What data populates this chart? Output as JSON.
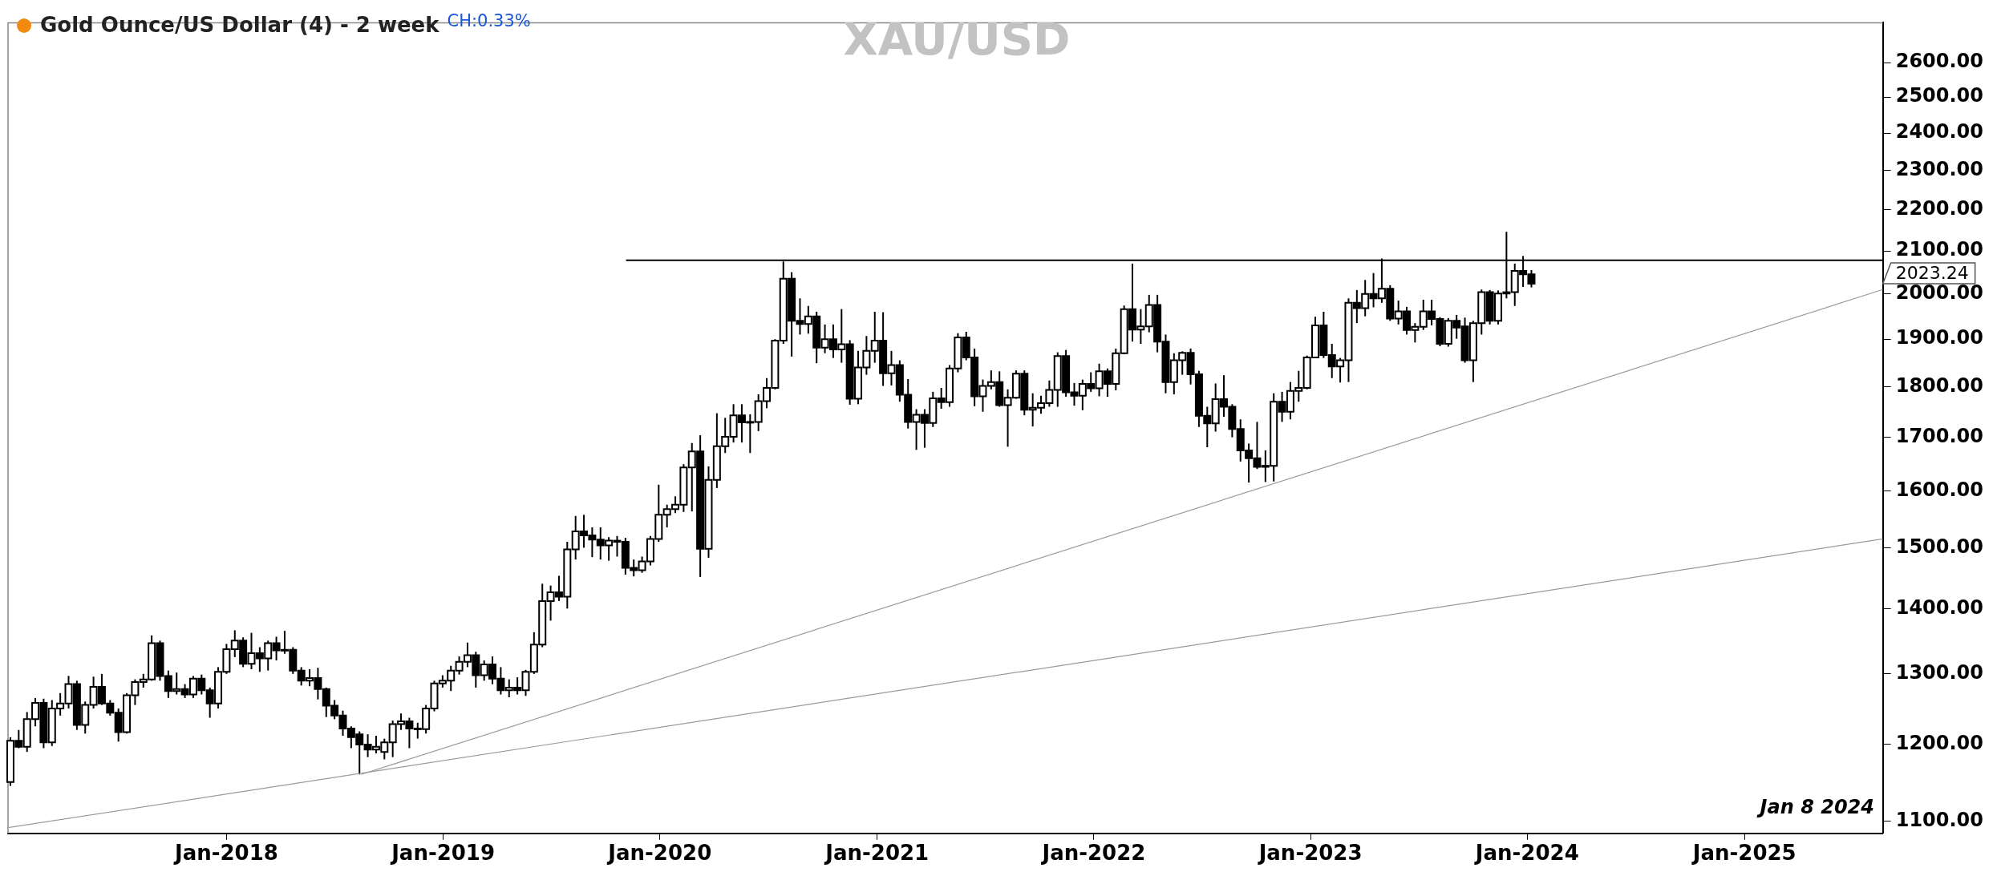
{
  "chart_data": {
    "type": "candlestick",
    "title": "XAU/USD",
    "subtitle": "Gold Ounce/US Dollar (4) - 2 week",
    "annotations": [
      "CH:0.33%",
      "Jan 8 2024",
      "2023.24"
    ],
    "color": "#000000",
    "log": "y",
    "colors": [
      "#ffffff",
      "#000000",
      "#ffffff",
      "#ffffff",
      "#000000",
      "#ffffff",
      "#ffffff",
      "#ffffff",
      "#000000",
      "#ffffff",
      "#ffffff",
      "#000000",
      "#000000",
      "#000000",
      "#ffffff",
      "#ffffff",
      "#ffffff",
      "#ffffff",
      "#000000",
      "#000000",
      "#ffffff",
      "#000000",
      "#ffffff",
      "#000000",
      "#000000",
      "#ffffff",
      "#ffffff",
      "#ffffff",
      "#000000",
      "#ffffff",
      "#000000",
      "#ffffff",
      "#000000",
      "#ffffff",
      "#000000",
      "#000000",
      "#ffffff",
      "#000000",
      "#000000",
      "#000000",
      "#000000",
      "#000000",
      "#000000",
      "#000000",
      "#ffffff",
      "#ffffff",
      "#ffffff",
      "#ffffff",
      "#000000",
      "#000000",
      "#ffffff",
      "#ffffff",
      "#ffffff",
      "#ffffff",
      "#ffffff",
      "#ffffff",
      "#000000",
      "#ffffff",
      "#000000",
      "#000000",
      "#ffffff",
      "#000000",
      "#ffffff",
      "#ffffff",
      "#ffffff",
      "#ffffff",
      "#000000",
      "#ffffff",
      "#ffffff",
      "#000000",
      "#000000",
      "#000000",
      "#ffffff",
      "#000000",
      "#000000",
      "#000000",
      "#ffffff",
      "#ffffff",
      "#ffffff",
      "#ffffff",
      "#ffffff",
      "#ffffff",
      "#ffffff",
      "#000000",
      "#ffffff",
      "#ffffff",
      "#ffffff",
      "#ffffff",
      "#000000",
      "#ffffff",
      "#ffffff",
      "#ffffff",
      "#ffffff",
      "#ffffff",
      "#000000",
      "#000000",
      "#ffffff",
      "#000000",
      "#ffffff",
      "#000000",
      "#ffffff",
      "#000000",
      "#ffffff",
      "#ffffff",
      "#ffffff",
      "#000000",
      "#ffffff",
      "#000000",
      "#000000",
      "#ffffff",
      "#000000",
      "#ffffff",
      "#000000",
      "#ffffff",
      "#ffffff",
      "#000000",
      "#000000",
      "#ffffff",
      "#ffffff",
      "#000000",
      "#ffffff",
      "#ffffff",
      "#000000",
      "#ffffff",
      "#ffffff",
      "#ffffff",
      "#ffffff",
      "#000000",
      "#000000",
      "#ffffff",
      "#000000",
      "#ffffff",
      "#000000",
      "#ffffff",
      "#ffffff",
      "#000000",
      "#ffffff",
      "#ffffff",
      "#000000",
      "#000000",
      "#ffffff",
      "#ffffff",
      "#000000",
      "#000000",
      "#000000",
      "#ffffff",
      "#000000",
      "#000000",
      "#000000",
      "#000000",
      "#000000",
      "#ffffff",
      "#ffffff",
      "#000000",
      "#ffffff",
      "#ffffff",
      "#ffffff",
      "#ffffff",
      "#000000",
      "#000000",
      "#ffffff",
      "#ffffff",
      "#000000",
      "#ffffff",
      "#000000",
      "#ffffff",
      "#000000",
      "#ffffff",
      "#000000",
      "#ffffff",
      "#ffffff",
      "#000000",
      "#000000",
      "#ffffff",
      "#000000",
      "#000000",
      "#ffffff",
      "#ffffff",
      "#000000",
      "#ffffff",
      "#ffffff",
      "#ffffff",
      "#000000",
      "#000000"
    ],
    "grid": false,
    "legend": false,
    "xlim": [
      "2016-12-29",
      "2025-08-22"
    ],
    "xticks": [
      {
        "value": "2018-01-01",
        "label": "Jan-2018"
      },
      {
        "value": "2019-01-01",
        "label": "Jan-2019"
      },
      {
        "value": "2020-01-01",
        "label": "Jan-2020"
      },
      {
        "value": "2021-01-01",
        "label": "Jan-2021"
      },
      {
        "value": "2022-01-01",
        "label": "Jan-2022"
      },
      {
        "value": "2023-01-01",
        "label": "Jan-2023"
      },
      {
        "value": "2024-01-01",
        "label": "Jan-2024"
      },
      {
        "value": "2025-01-01",
        "label": "Jan-2025"
      }
    ],
    "ylim": [
      1085,
      2720
    ],
    "yticks": [
      {
        "value": 1100,
        "label": "1100.00"
      },
      {
        "value": 1200,
        "label": "1200.00"
      },
      {
        "value": 1300,
        "label": "1300.00"
      },
      {
        "value": 1400,
        "label": "1400.00"
      },
      {
        "value": 1500,
        "label": "1500.00"
      },
      {
        "value": 1600,
        "label": "1600.00"
      },
      {
        "value": 1700,
        "label": "1700.00"
      },
      {
        "value": 1800,
        "label": "1800.00"
      },
      {
        "value": 1900,
        "label": "1900.00"
      },
      {
        "value": 2000,
        "label": "2000.00"
      },
      {
        "value": 2100,
        "label": "2100.00"
      },
      {
        "value": 2200,
        "label": "2200.00"
      },
      {
        "value": 2300,
        "label": "2300.00"
      },
      {
        "value": 2400,
        "label": "2400.00"
      },
      {
        "value": 2500,
        "label": "2500.00"
      },
      {
        "value": 2600,
        "label": "2600.00"
      }
    ],
    "x": [
      "2017-01-02",
      "2017-01-16",
      "2017-01-30",
      "2017-02-13",
      "2017-02-27",
      "2017-03-13",
      "2017-03-27",
      "2017-04-10",
      "2017-04-24",
      "2017-05-08",
      "2017-05-22",
      "2017-06-05",
      "2017-06-19",
      "2017-07-03",
      "2017-07-17",
      "2017-07-31",
      "2017-08-14",
      "2017-08-28",
      "2017-09-11",
      "2017-09-25",
      "2017-10-09",
      "2017-10-23",
      "2017-11-06",
      "2017-11-20",
      "2017-12-04",
      "2017-12-18",
      "2018-01-01",
      "2018-01-15",
      "2018-01-29",
      "2018-02-12",
      "2018-02-26",
      "2018-03-12",
      "2018-03-26",
      "2018-04-09",
      "2018-04-23",
      "2018-05-07",
      "2018-05-21",
      "2018-06-04",
      "2018-06-18",
      "2018-07-02",
      "2018-07-16",
      "2018-07-30",
      "2018-08-13",
      "2018-08-27",
      "2018-09-10",
      "2018-09-24",
      "2018-10-08",
      "2018-10-22",
      "2018-11-05",
      "2018-11-19",
      "2018-12-03",
      "2018-12-17",
      "2018-12-31",
      "2019-01-14",
      "2019-01-28",
      "2019-02-11",
      "2019-02-25",
      "2019-03-11",
      "2019-03-25",
      "2019-04-08",
      "2019-04-22",
      "2019-05-06",
      "2019-05-20",
      "2019-06-03",
      "2019-06-17",
      "2019-07-01",
      "2019-07-15",
      "2019-07-29",
      "2019-08-12",
      "2019-08-26",
      "2019-09-09",
      "2019-09-23",
      "2019-10-07",
      "2019-10-21",
      "2019-11-04",
      "2019-11-18",
      "2019-12-02",
      "2019-12-16",
      "2019-12-30",
      "2020-01-13",
      "2020-01-27",
      "2020-02-10",
      "2020-02-24",
      "2020-03-09",
      "2020-03-23",
      "2020-04-06",
      "2020-04-20",
      "2020-05-04",
      "2020-05-18",
      "2020-06-01",
      "2020-06-15",
      "2020-06-29",
      "2020-07-13",
      "2020-07-27",
      "2020-08-10",
      "2020-08-24",
      "2020-09-07",
      "2020-09-21",
      "2020-10-05",
      "2020-10-19",
      "2020-11-02",
      "2020-11-16",
      "2020-11-30",
      "2020-12-14",
      "2020-12-28",
      "2021-01-11",
      "2021-01-25",
      "2021-02-08",
      "2021-02-22",
      "2021-03-08",
      "2021-03-22",
      "2021-04-05",
      "2021-04-19",
      "2021-05-03",
      "2021-05-17",
      "2021-05-31",
      "2021-06-14",
      "2021-06-28",
      "2021-07-12",
      "2021-07-26",
      "2021-08-09",
      "2021-08-23",
      "2021-09-06",
      "2021-09-20",
      "2021-10-04",
      "2021-10-18",
      "2021-11-01",
      "2021-11-15",
      "2021-11-29",
      "2021-12-13",
      "2021-12-27",
      "2022-01-10",
      "2022-01-24",
      "2022-02-07",
      "2022-02-21",
      "2022-03-07",
      "2022-03-21",
      "2022-04-04",
      "2022-04-18",
      "2022-05-02",
      "2022-05-16",
      "2022-05-30",
      "2022-06-13",
      "2022-06-27",
      "2022-07-11",
      "2022-07-25",
      "2022-08-08",
      "2022-08-22",
      "2022-09-05",
      "2022-09-19",
      "2022-10-03",
      "2022-10-17",
      "2022-10-31",
      "2022-11-14",
      "2022-11-28",
      "2022-12-12",
      "2022-12-26",
      "2023-01-09",
      "2023-01-23",
      "2023-02-06",
      "2023-02-20",
      "2023-03-06",
      "2023-03-20",
      "2023-04-03",
      "2023-04-17",
      "2023-05-01",
      "2023-05-15",
      "2023-05-29",
      "2023-06-12",
      "2023-06-26",
      "2023-07-10",
      "2023-07-24",
      "2023-08-07",
      "2023-08-21",
      "2023-09-04",
      "2023-09-18",
      "2023-10-02",
      "2023-10-16",
      "2023-10-30",
      "2023-11-13",
      "2023-11-27",
      "2023-12-11",
      "2023-12-25",
      "2024-01-08"
    ],
    "ohlc": [
      [
        1150,
        1210,
        1145,
        1205
      ],
      [
        1205,
        1220,
        1195,
        1197
      ],
      [
        1197,
        1245,
        1190,
        1235
      ],
      [
        1235,
        1265,
        1225,
        1258
      ],
      [
        1258,
        1264,
        1195,
        1203
      ],
      [
        1203,
        1262,
        1198,
        1250
      ],
      [
        1250,
        1272,
        1240,
        1257
      ],
      [
        1257,
        1297,
        1250,
        1285
      ],
      [
        1285,
        1290,
        1220,
        1227
      ],
      [
        1227,
        1260,
        1215,
        1255
      ],
      [
        1255,
        1296,
        1250,
        1281
      ],
      [
        1281,
        1300,
        1255,
        1257
      ],
      [
        1257,
        1262,
        1240,
        1244
      ],
      [
        1244,
        1250,
        1204,
        1217
      ],
      [
        1217,
        1272,
        1215,
        1269
      ],
      [
        1269,
        1292,
        1255,
        1288
      ],
      [
        1288,
        1300,
        1280,
        1292
      ],
      [
        1292,
        1358,
        1290,
        1346
      ],
      [
        1346,
        1350,
        1290,
        1297
      ],
      [
        1297,
        1305,
        1265,
        1275
      ],
      [
        1275,
        1302,
        1270,
        1278
      ],
      [
        1278,
        1285,
        1265,
        1270
      ],
      [
        1270,
        1297,
        1265,
        1293
      ],
      [
        1293,
        1299,
        1270,
        1276
      ],
      [
        1276,
        1280,
        1237,
        1257
      ],
      [
        1257,
        1310,
        1250,
        1303
      ],
      [
        1303,
        1345,
        1300,
        1337
      ],
      [
        1337,
        1366,
        1325,
        1350
      ],
      [
        1350,
        1355,
        1310,
        1315
      ],
      [
        1315,
        1362,
        1307,
        1331
      ],
      [
        1331,
        1340,
        1303,
        1323
      ],
      [
        1323,
        1350,
        1305,
        1346
      ],
      [
        1346,
        1356,
        1320,
        1335
      ],
      [
        1335,
        1365,
        1330,
        1336
      ],
      [
        1336,
        1340,
        1300,
        1305
      ],
      [
        1305,
        1310,
        1283,
        1290
      ],
      [
        1290,
        1307,
        1282,
        1294
      ],
      [
        1294,
        1309,
        1263,
        1278
      ],
      [
        1278,
        1280,
        1238,
        1254
      ],
      [
        1254,
        1262,
        1235,
        1240
      ],
      [
        1240,
        1247,
        1212,
        1222
      ],
      [
        1222,
        1225,
        1195,
        1210
      ],
      [
        1214,
        1218,
        1160,
        1200
      ],
      [
        1200,
        1214,
        1183,
        1193
      ],
      [
        1193,
        1212,
        1188,
        1197
      ],
      [
        1190,
        1208,
        1180,
        1203
      ],
      [
        1203,
        1233,
        1183,
        1228
      ],
      [
        1228,
        1243,
        1220,
        1232
      ],
      [
        1232,
        1237,
        1195,
        1222
      ],
      [
        1222,
        1230,
        1208,
        1221
      ],
      [
        1221,
        1255,
        1215,
        1250
      ],
      [
        1250,
        1290,
        1246,
        1286
      ],
      [
        1286,
        1298,
        1280,
        1290
      ],
      [
        1290,
        1312,
        1275,
        1305
      ],
      [
        1305,
        1326,
        1299,
        1318
      ],
      [
        1318,
        1347,
        1310,
        1328
      ],
      [
        1328,
        1333,
        1280,
        1298
      ],
      [
        1298,
        1320,
        1290,
        1314
      ],
      [
        1314,
        1326,
        1285,
        1293
      ],
      [
        1293,
        1310,
        1270,
        1276
      ],
      [
        1276,
        1292,
        1266,
        1280
      ],
      [
        1280,
        1295,
        1270,
        1276
      ],
      [
        1276,
        1306,
        1268,
        1303
      ],
      [
        1303,
        1363,
        1300,
        1344
      ],
      [
        1344,
        1440,
        1340,
        1412
      ],
      [
        1412,
        1437,
        1381,
        1426
      ],
      [
        1426,
        1453,
        1412,
        1419
      ],
      [
        1419,
        1510,
        1400,
        1497
      ],
      [
        1497,
        1555,
        1480,
        1528
      ],
      [
        1528,
        1557,
        1500,
        1521
      ],
      [
        1521,
        1535,
        1484,
        1514
      ],
      [
        1514,
        1535,
        1480,
        1504
      ],
      [
        1504,
        1518,
        1478,
        1512
      ],
      [
        1512,
        1520,
        1485,
        1510
      ],
      [
        1510,
        1517,
        1455,
        1466
      ],
      [
        1466,
        1480,
        1452,
        1462
      ],
      [
        1462,
        1485,
        1458,
        1477
      ],
      [
        1477,
        1520,
        1470,
        1515
      ],
      [
        1515,
        1611,
        1510,
        1557
      ],
      [
        1557,
        1575,
        1535,
        1567
      ],
      [
        1567,
        1590,
        1560,
        1575
      ],
      [
        1575,
        1649,
        1562,
        1643
      ],
      [
        1643,
        1689,
        1563,
        1673
      ],
      [
        1673,
        1704,
        1451,
        1498
      ],
      [
        1498,
        1645,
        1483,
        1620
      ],
      [
        1620,
        1747,
        1605,
        1683
      ],
      [
        1683,
        1738,
        1670,
        1701
      ],
      [
        1701,
        1765,
        1690,
        1743
      ],
      [
        1743,
        1765,
        1690,
        1729
      ],
      [
        1729,
        1745,
        1670,
        1730
      ],
      [
        1730,
        1785,
        1712,
        1771
      ],
      [
        1771,
        1818,
        1757,
        1798
      ],
      [
        1798,
        1900,
        1795,
        1897
      ],
      [
        1897,
        2075,
        1890,
        2035
      ],
      [
        2035,
        2050,
        1863,
        1940
      ],
      [
        1940,
        1990,
        1910,
        1933
      ],
      [
        1933,
        1973,
        1912,
        1950
      ],
      [
        1950,
        1960,
        1849,
        1882
      ],
      [
        1882,
        1932,
        1870,
        1900
      ],
      [
        1900,
        1932,
        1860,
        1878
      ],
      [
        1878,
        1966,
        1850,
        1889
      ],
      [
        1889,
        1898,
        1764,
        1776
      ],
      [
        1776,
        1875,
        1765,
        1840
      ],
      [
        1840,
        1907,
        1825,
        1875
      ],
      [
        1875,
        1960,
        1850,
        1897
      ],
      [
        1897,
        1959,
        1802,
        1828
      ],
      [
        1828,
        1875,
        1803,
        1845
      ],
      [
        1845,
        1855,
        1770,
        1784
      ],
      [
        1784,
        1816,
        1717,
        1730
      ],
      [
        1730,
        1755,
        1676,
        1744
      ],
      [
        1744,
        1755,
        1680,
        1728
      ],
      [
        1728,
        1790,
        1720,
        1777
      ],
      [
        1777,
        1798,
        1756,
        1769
      ],
      [
        1769,
        1845,
        1760,
        1838
      ],
      [
        1838,
        1913,
        1830,
        1904
      ],
      [
        1904,
        1916,
        1855,
        1861
      ],
      [
        1861,
        1880,
        1761,
        1781
      ],
      [
        1781,
        1815,
        1750,
        1802
      ],
      [
        1802,
        1834,
        1795,
        1810
      ],
      [
        1810,
        1832,
        1760,
        1763
      ],
      [
        1763,
        1795,
        1682,
        1778
      ],
      [
        1778,
        1834,
        1776,
        1827
      ],
      [
        1827,
        1834,
        1743,
        1754
      ],
      [
        1754,
        1787,
        1721,
        1758
      ],
      [
        1758,
        1782,
        1746,
        1767
      ],
      [
        1767,
        1813,
        1760,
        1794
      ],
      [
        1794,
        1872,
        1760,
        1864
      ],
      [
        1864,
        1877,
        1780,
        1789
      ],
      [
        1789,
        1808,
        1762,
        1782
      ],
      [
        1782,
        1815,
        1753,
        1806
      ],
      [
        1806,
        1830,
        1790,
        1797
      ],
      [
        1797,
        1848,
        1781,
        1832
      ],
      [
        1832,
        1838,
        1780,
        1806
      ],
      [
        1806,
        1880,
        1793,
        1870
      ],
      [
        1870,
        1974,
        1868,
        1966
      ],
      [
        1966,
        2070,
        1895,
        1921
      ],
      [
        1921,
        1966,
        1890,
        1928
      ],
      [
        1928,
        1998,
        1915,
        1975
      ],
      [
        1975,
        1998,
        1872,
        1895
      ],
      [
        1895,
        1910,
        1787,
        1810
      ],
      [
        1810,
        1870,
        1785,
        1855
      ],
      [
        1855,
        1874,
        1825,
        1871
      ],
      [
        1871,
        1880,
        1805,
        1826
      ],
      [
        1826,
        1833,
        1720,
        1742
      ],
      [
        1742,
        1760,
        1681,
        1727
      ],
      [
        1727,
        1807,
        1711,
        1775
      ],
      [
        1775,
        1824,
        1740,
        1760
      ],
      [
        1760,
        1765,
        1700,
        1716
      ],
      [
        1716,
        1735,
        1654,
        1675
      ],
      [
        1675,
        1688,
        1615,
        1660
      ],
      [
        1660,
        1730,
        1640,
        1644
      ],
      [
        1644,
        1675,
        1616,
        1646
      ],
      [
        1646,
        1787,
        1617,
        1770
      ],
      [
        1770,
        1790,
        1730,
        1750
      ],
      [
        1750,
        1810,
        1735,
        1792
      ],
      [
        1792,
        1833,
        1770,
        1798
      ],
      [
        1798,
        1865,
        1795,
        1861
      ],
      [
        1861,
        1949,
        1860,
        1930
      ],
      [
        1930,
        1960,
        1860,
        1866
      ],
      [
        1866,
        1890,
        1818,
        1842
      ],
      [
        1842,
        1860,
        1809,
        1855
      ],
      [
        1855,
        1990,
        1810,
        1980
      ],
      [
        1980,
        2009,
        1935,
        1968
      ],
      [
        1968,
        2032,
        1950,
        2000
      ],
      [
        2000,
        2048,
        1970,
        1990
      ],
      [
        1990,
        2082,
        1980,
        2012
      ],
      [
        2012,
        2020,
        1940,
        1945
      ],
      [
        1945,
        1985,
        1932,
        1961
      ],
      [
        1961,
        1971,
        1910,
        1920
      ],
      [
        1920,
        1935,
        1893,
        1927
      ],
      [
        1927,
        1987,
        1920,
        1961
      ],
      [
        1961,
        1987,
        1930,
        1944
      ],
      [
        1944,
        1948,
        1885,
        1890
      ],
      [
        1890,
        1946,
        1884,
        1940
      ],
      [
        1940,
        1953,
        1901,
        1925
      ],
      [
        1928,
        1947,
        1850,
        1855
      ],
      [
        1855,
        1940,
        1810,
        1935
      ],
      [
        1935,
        2010,
        1910,
        2004
      ],
      [
        2004,
        2009,
        1932,
        1940
      ],
      [
        1940,
        2008,
        1932,
        2001
      ],
      [
        2001,
        2146,
        1990,
        2004
      ],
      [
        2004,
        2070,
        1973,
        2053
      ],
      [
        2053,
        2088,
        2016,
        2045
      ],
      [
        2045,
        2055,
        2015,
        2023.24
      ]
    ],
    "series": [
      {
        "type": "line",
        "x": [
          "2019-11-05",
          "2025-08-22"
        ],
        "values": [
          2078,
          2078
        ],
        "color": "#000000"
      },
      {
        "type": "line",
        "x": [
          "2018-08-16",
          "2025-08-22"
        ],
        "values": [
          1160,
          2010
        ],
        "color": "#9a9a9a"
      },
      {
        "type": "line",
        "x": [
          "2016-12-29",
          "2025-08-22"
        ],
        "values": [
          1092,
          1515
        ],
        "color": "#9a9a9a"
      }
    ]
  }
}
